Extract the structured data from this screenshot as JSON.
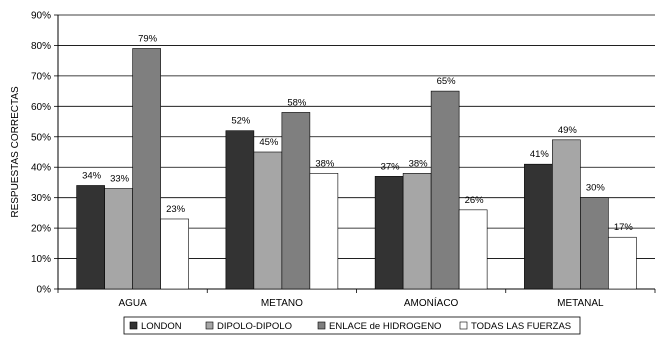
{
  "chart_data": {
    "type": "bar",
    "title": "",
    "xlabel": "",
    "ylabel": "RESPUESTAS CORRECTAS",
    "ylim": [
      0,
      90
    ],
    "yticks": [
      0,
      10,
      20,
      30,
      40,
      50,
      60,
      70,
      80,
      90
    ],
    "ytick_suffix": "%",
    "grid": true,
    "legend_position": "bottom",
    "categories": [
      "AGUA",
      "METANO",
      "AMONÍACO",
      "METANAL"
    ],
    "series": [
      {
        "name": "LONDON",
        "color": "#333333",
        "values": [
          34,
          52,
          37,
          41
        ]
      },
      {
        "name": "DIPOLO-DIPOLO",
        "color": "#a6a6a6",
        "values": [
          33,
          45,
          38,
          49
        ]
      },
      {
        "name": "ENLACE de HIDROGENO",
        "color": "#7f7f7f",
        "values": [
          79,
          58,
          65,
          30
        ]
      },
      {
        "name": "TODAS LAS FUERZAS",
        "color": "#ffffff",
        "values": [
          23,
          38,
          26,
          17
        ]
      }
    ]
  }
}
